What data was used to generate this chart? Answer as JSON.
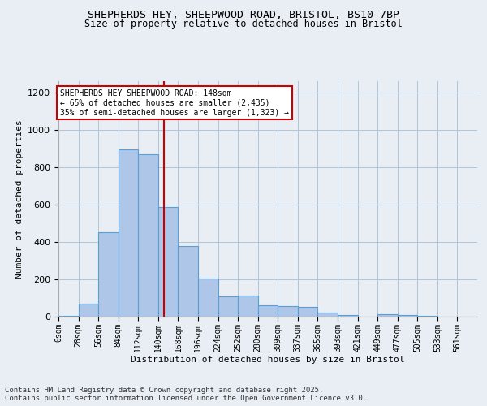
{
  "title1": "SHEPHERDS HEY, SHEEPWOOD ROAD, BRISTOL, BS10 7BP",
  "title2": "Size of property relative to detached houses in Bristol",
  "xlabel": "Distribution of detached houses by size in Bristol",
  "ylabel": "Number of detached properties",
  "bin_labels": [
    "0sqm",
    "28sqm",
    "56sqm",
    "84sqm",
    "112sqm",
    "140sqm",
    "168sqm",
    "196sqm",
    "224sqm",
    "252sqm",
    "280sqm",
    "309sqm",
    "337sqm",
    "365sqm",
    "393sqm",
    "421sqm",
    "449sqm",
    "477sqm",
    "505sqm",
    "533sqm",
    "561sqm"
  ],
  "bar_heights": [
    5,
    70,
    450,
    895,
    870,
    585,
    380,
    205,
    110,
    112,
    60,
    55,
    50,
    22,
    10,
    0,
    12,
    10,
    5,
    2,
    2
  ],
  "bar_color": "#aec6e8",
  "bar_edge_color": "#5a9fd4",
  "grid_color": "#b0c4d8",
  "vline_x": 148,
  "bin_width": 28,
  "annotation_text": "SHEPHERDS HEY SHEEPWOOD ROAD: 148sqm\n← 65% of detached houses are smaller (2,435)\n35% of semi-detached houses are larger (1,323) →",
  "annotation_box_color": "#ffffff",
  "annotation_border_color": "#cc0000",
  "vline_color": "#cc0000",
  "ylim": [
    0,
    1260
  ],
  "yticks": [
    0,
    200,
    400,
    600,
    800,
    1000,
    1200
  ],
  "footnote": "Contains HM Land Registry data © Crown copyright and database right 2025.\nContains public sector information licensed under the Open Government Licence v3.0.",
  "bg_color": "#e8eef4"
}
